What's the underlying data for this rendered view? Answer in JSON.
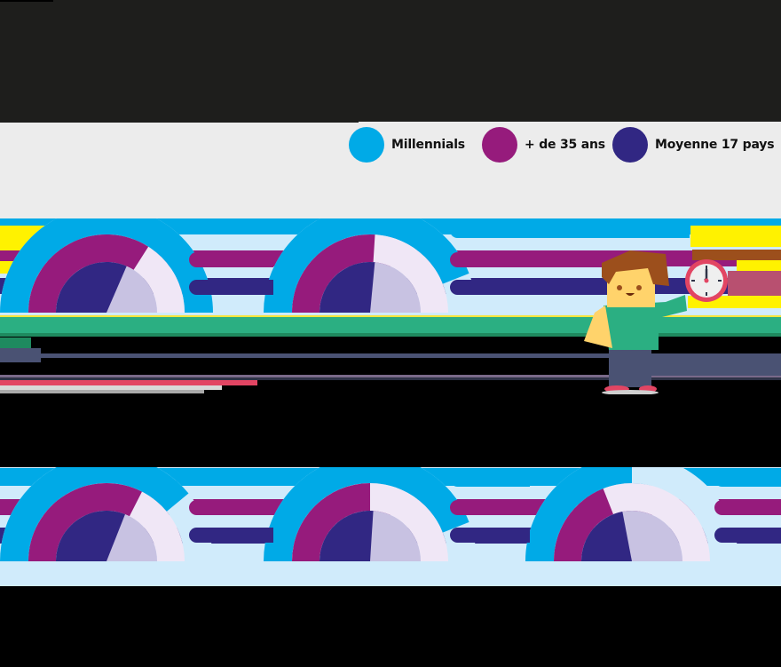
{
  "legend": {
    "items": [
      {
        "label": "Millennials",
        "color": "#00aae7"
      },
      {
        "label": "+ de 35 ans",
        "color": "#961b7c"
      },
      {
        "label": "Moyenne 17 pays",
        "color": "#312783"
      }
    ]
  },
  "colors": {
    "millennials": "#00aae7",
    "plus35": "#961b7c",
    "moyenne": "#312783",
    "millennials_track": "#d0ebfb",
    "plus35_track": "#f0e7f6",
    "moyenne_track": "#c8c2e2",
    "panel_bg": "#d0ebfb",
    "legend_bg": "#ececec",
    "header_bg": "#1e1e1c"
  },
  "chart_data": [
    {
      "type": "gauge",
      "title": "",
      "series": [
        {
          "name": "Millennials",
          "value": 100
        },
        {
          "name": "+ de 35 ans",
          "value": 68
        },
        {
          "name": "Moyenne 17 pays",
          "value": 63
        }
      ],
      "range": [
        0,
        100
      ]
    },
    {
      "type": "gauge",
      "title": "",
      "series": [
        {
          "name": "Millennials",
          "value": 88
        },
        {
          "name": "+ de 35 ans",
          "value": 52
        },
        {
          "name": "Moyenne 17 pays",
          "value": 53
        }
      ],
      "range": [
        0,
        100
      ]
    },
    {
      "type": "gauge",
      "title": "",
      "series": [
        {
          "name": "Millennials",
          "value": 78
        },
        {
          "name": "+ de 35 ans",
          "value": 65
        },
        {
          "name": "Moyenne 17 pays",
          "value": 62
        }
      ],
      "range": [
        0,
        100
      ]
    },
    {
      "type": "gauge",
      "title": "",
      "series": [
        {
          "name": "Millennials",
          "value": 88
        },
        {
          "name": "+ de 35 ans",
          "value": 50
        },
        {
          "name": "Moyenne 17 pays",
          "value": 52
        }
      ],
      "range": [
        0,
        100
      ]
    },
    {
      "type": "gauge",
      "title": "",
      "series": [
        {
          "name": "Millennials",
          "value": 50
        },
        {
          "name": "+ de 35 ans",
          "value": 38
        },
        {
          "name": "Moyenne 17 pays",
          "value": 44
        }
      ],
      "range": [
        0,
        100
      ]
    }
  ]
}
